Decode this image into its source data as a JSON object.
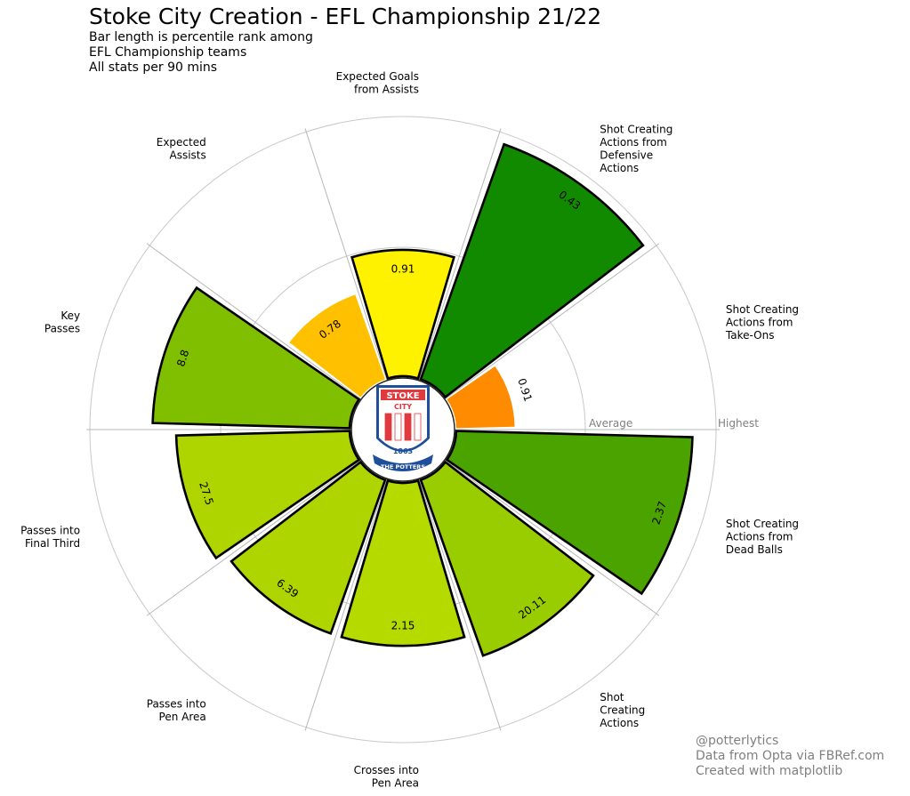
{
  "header": {
    "title": "Stoke City Creation - EFL Championship 21/22",
    "subtitle_lines": [
      "Bar length is percentile rank among",
      "EFL Championship teams",
      "All stats per 90 mins"
    ]
  },
  "footer": {
    "credit_lines": [
      "@potterlytics",
      "Data from Opta via FBRef.com",
      "Created with matplotlib"
    ]
  },
  "logo": {
    "top_text": "STOKE",
    "mid_text": "CITY",
    "year": "1863",
    "ribbon": "THE POTTERS",
    "colors": {
      "red": "#e03a3e",
      "blue": "#1f4e9a",
      "white": "#ffffff"
    }
  },
  "chart_data": {
    "type": "polar-bar",
    "radial_scale": "percentile rank among EFL Championship teams (0-100)",
    "reference_labels": {
      "average": "Average",
      "highest": "Highest"
    },
    "reference_values": {
      "average": 50,
      "highest": 100
    },
    "series": [
      {
        "label": [
          "Shot Creating",
          "Actions from",
          "Take-Ons"
        ],
        "value_text": "0.91",
        "percentile": 23,
        "color": "#ff8c00",
        "edge": false
      },
      {
        "label": [
          "Shot Creating",
          "Actions from",
          "Defensive",
          "Actions"
        ],
        "value_text": "0.43",
        "percentile": 96,
        "color": "#128a00",
        "edge": true
      },
      {
        "label": [
          "Expected Goals",
          "from Assists"
        ],
        "value_text": "0.91",
        "percentile": 49,
        "color": "#fff200",
        "edge": true
      },
      {
        "label": [
          "Expected",
          "Assists"
        ],
        "value_text": "0.78",
        "percentile": 35,
        "color": "#ffc000",
        "edge": false
      },
      {
        "label": [
          "Key",
          "Passes"
        ],
        "value_text": "8.8",
        "percentile": 76,
        "color": "#80bf00",
        "edge": true
      },
      {
        "label": [
          "Passes into",
          "Final Third"
        ],
        "value_text": "27.5",
        "percentile": 67,
        "color": "#aed500",
        "edge": true
      },
      {
        "label": [
          "Passes into",
          "Pen Area"
        ],
        "value_text": "6.39",
        "percentile": 63,
        "color": "#aed500",
        "edge": true
      },
      {
        "label": [
          "Crosses into",
          "Pen Area"
        ],
        "value_text": "2.15",
        "percentile": 63,
        "color": "#b4da00",
        "edge": true
      },
      {
        "label": [
          "Shot",
          "Creating",
          "Actions"
        ],
        "value_text": "20.11",
        "percentile": 72,
        "color": "#9acd00",
        "edge": true
      },
      {
        "label": [
          "Shot Creating",
          "Actions from",
          "Dead Balls"
        ],
        "value_text": "2.37",
        "percentile": 91,
        "color": "#4ba300",
        "edge": true
      }
    ]
  }
}
